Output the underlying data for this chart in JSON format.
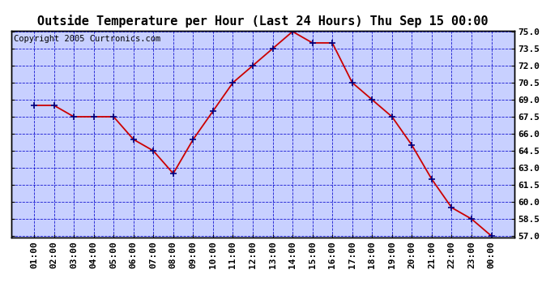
{
  "title": "Outside Temperature per Hour (Last 24 Hours) Thu Sep 15 00:00",
  "copyright": "Copyright 2005 Curtronics.com",
  "hours": [
    "01:00",
    "02:00",
    "03:00",
    "04:00",
    "05:00",
    "06:00",
    "07:00",
    "08:00",
    "09:00",
    "10:00",
    "11:00",
    "12:00",
    "13:00",
    "14:00",
    "15:00",
    "16:00",
    "17:00",
    "18:00",
    "19:00",
    "20:00",
    "21:00",
    "22:00",
    "23:00",
    "00:00"
  ],
  "temps": [
    68.5,
    68.5,
    67.5,
    67.5,
    67.5,
    65.5,
    64.5,
    62.5,
    65.5,
    68.0,
    70.5,
    72.0,
    73.5,
    75.0,
    74.0,
    74.0,
    70.5,
    69.0,
    67.5,
    65.0,
    62.0,
    59.5,
    58.5,
    57.0
  ],
  "ylim_min": 56.9,
  "ylim_max": 75.1,
  "yticks": [
    57.0,
    58.5,
    60.0,
    61.5,
    63.0,
    64.5,
    66.0,
    67.5,
    69.0,
    70.5,
    72.0,
    73.5,
    75.0
  ],
  "line_color": "#cc0000",
  "marker_color": "#000080",
  "plot_bg_color": "#c8d0ff",
  "fig_bg_color": "#ffffff",
  "grid_color": "#0000cc",
  "title_fontsize": 11,
  "tick_fontsize": 8,
  "copyright_fontsize": 7.5
}
